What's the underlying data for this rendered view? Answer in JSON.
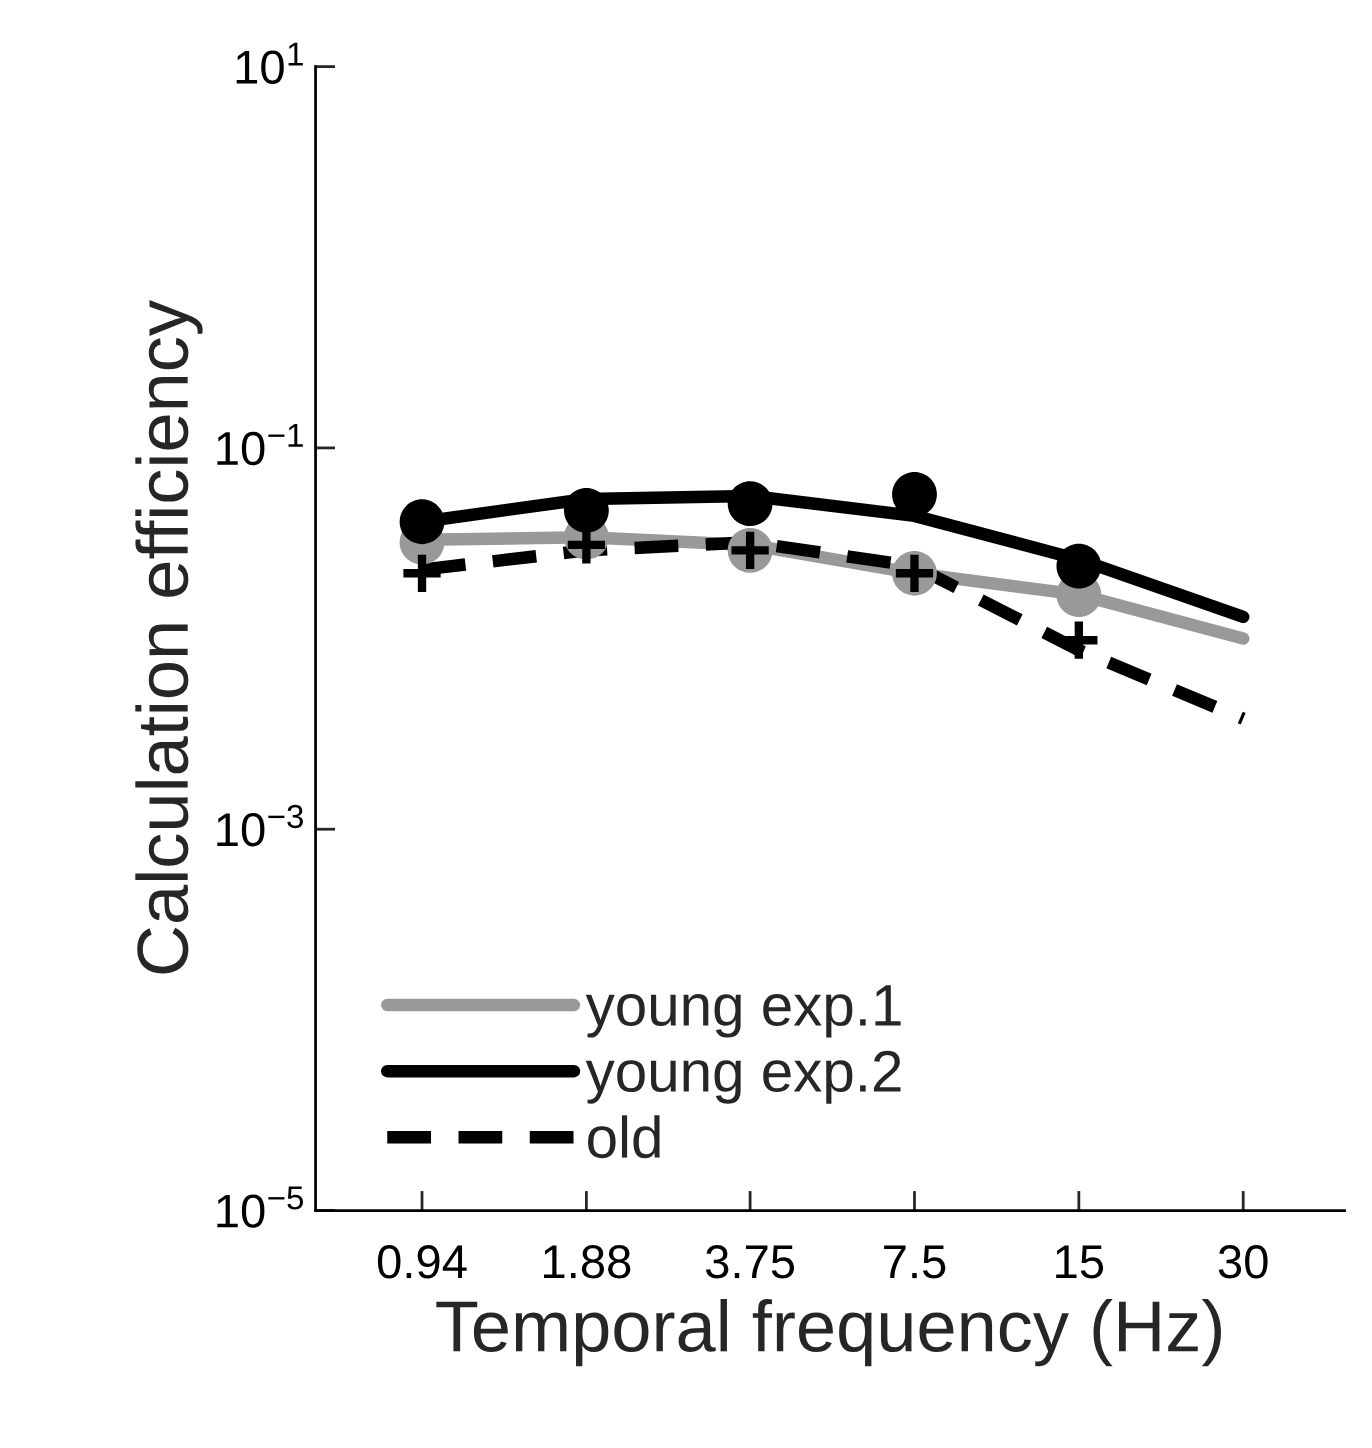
{
  "chart_data": {
    "type": "line",
    "xlabel": "Temporal frequency (Hz)",
    "ylabel": "Calculation efficiency",
    "log": "xy",
    "xlim": [
      0.6,
      46
    ],
    "xticks": [
      {
        "value": 0.94,
        "label": "0.94"
      },
      {
        "value": 1.88,
        "label": "1.88"
      },
      {
        "value": 3.75,
        "label": "3.75"
      },
      {
        "value": 7.5,
        "label": "7.5"
      },
      {
        "value": 15,
        "label": "15"
      },
      {
        "value": 30,
        "label": "30"
      }
    ],
    "ylim": [
      1e-05,
      10
    ],
    "yticks": [
      {
        "value": 1e-05,
        "label": "10$^{−5}$"
      },
      {
        "value": 0.001,
        "label": "10$^{−3}$"
      },
      {
        "value": 0.1,
        "label": "10$^{−1}$"
      },
      {
        "value": 10,
        "label": "10$^{1}$"
      }
    ],
    "grid": false,
    "legend": "bottom left",
    "series": [
      {
        "name": "young exp.1",
        "color": "#999999",
        "line_style": "solid",
        "x": [
          0.94,
          1.88,
          3.75,
          7.5,
          15,
          30
        ],
        "values": [
          0.033,
          0.034,
          0.031,
          0.022,
          0.017,
          0.01
        ]
      },
      {
        "name": "young exp.2",
        "color": "#000000",
        "line_style": "solid",
        "x": [
          0.94,
          1.88,
          3.75,
          7.5,
          15,
          30
        ],
        "values": [
          0.041,
          0.054,
          0.056,
          0.044,
          0.026,
          0.013
        ]
      },
      {
        "name": "old",
        "color": "#000000",
        "line_style": "dashed",
        "x": [
          0.94,
          1.88,
          3.75,
          7.5,
          15,
          30
        ],
        "values": [
          0.023,
          0.029,
          0.032,
          0.024,
          0.0087,
          0.0038
        ]
      },
      {
        "type": "scatter",
        "color": "#999999",
        "marker": "circle",
        "x": [
          0.94,
          1.88,
          3.75,
          7.5,
          15
        ],
        "values": [
          0.032,
          0.034,
          0.029,
          0.022,
          0.017
        ]
      },
      {
        "type": "scatter",
        "color": "#000000",
        "marker": "circle",
        "x": [
          0.94,
          1.88,
          3.75,
          7.5,
          15
        ],
        "values": [
          0.041,
          0.047,
          0.051,
          0.057,
          0.024
        ]
      },
      {
        "type": "scatter",
        "color": "#000000",
        "marker": "cross",
        "x": [
          0.94,
          1.88,
          3.75,
          7.5,
          15
        ],
        "values": [
          0.022,
          0.031,
          0.029,
          0.022,
          0.0098
        ]
      }
    ]
  }
}
